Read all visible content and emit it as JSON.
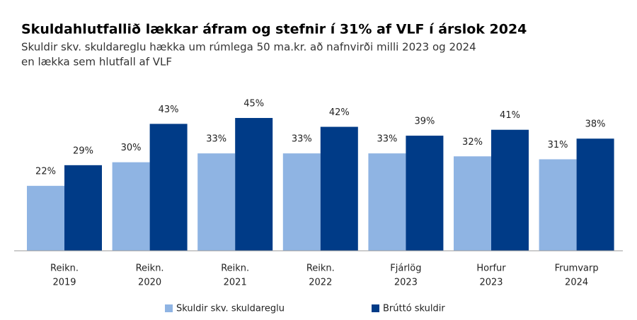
{
  "chart_data": {
    "type": "bar",
    "title": "Skuldahlutfallið lækkar áfram og stefnir í 31% af VLF í árslok 2024",
    "subtitle": [
      "Skuldir skv. skuldareglu hækka um rúmlega 50 ma.kr. að nafnvirði milli 2023 og 2024",
      "en lækka sem hlutfall af VLF"
    ],
    "categories": [
      [
        "Reikn.",
        "2019"
      ],
      [
        "Reikn.",
        "2020"
      ],
      [
        "Reikn.",
        "2021"
      ],
      [
        "Reikn.",
        "2022"
      ],
      [
        "Fjárlög",
        "2023"
      ],
      [
        "Horfur",
        "2023"
      ],
      [
        "Frumvarp",
        "2024"
      ]
    ],
    "series": [
      {
        "name": "Skuldir skv. skuldareglu",
        "color": "#8fb4e3",
        "values": [
          22,
          30,
          33,
          33,
          33,
          32,
          31
        ],
        "value_labels": [
          "22%",
          "30%",
          "33%",
          "33%",
          "33%",
          "32%",
          "31%"
        ]
      },
      {
        "name": "Brúttó skuldir",
        "color": "#003b87",
        "values": [
          29,
          43,
          45,
          42,
          39,
          41,
          38
        ],
        "value_labels": [
          "29%",
          "43%",
          "45%",
          "42%",
          "39%",
          "41%",
          "38%"
        ]
      }
    ]
  }
}
